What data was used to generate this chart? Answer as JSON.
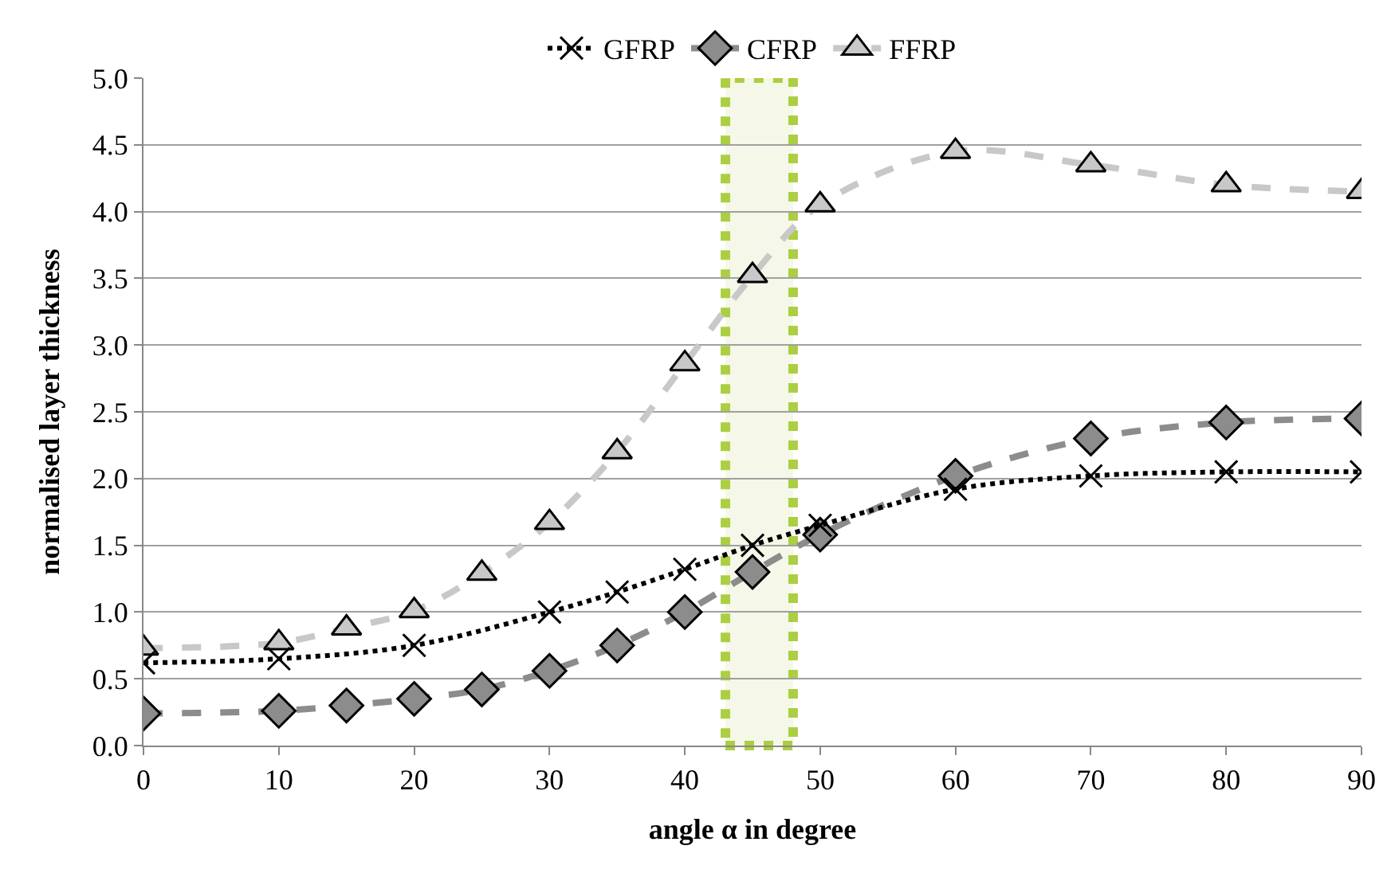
{
  "chart_data": {
    "type": "line",
    "xlabel": "angle α in degree",
    "ylabel": "normalised layer thickness",
    "xlim": [
      0,
      90
    ],
    "xticks": [
      0,
      10,
      20,
      30,
      40,
      50,
      60,
      70,
      80,
      90
    ],
    "ylim": [
      0,
      5
    ],
    "yticks": [
      {
        "value": 0,
        "label": "0.0"
      },
      {
        "value": 0.5,
        "label": "0.5"
      },
      {
        "value": 1,
        "label": "1.0"
      },
      {
        "value": 1.5,
        "label": "1.5"
      },
      {
        "value": 2,
        "label": "2.0"
      },
      {
        "value": 2.5,
        "label": "2.5"
      },
      {
        "value": 3,
        "label": "3.0"
      },
      {
        "value": 3.5,
        "label": "3.5"
      },
      {
        "value": 4,
        "label": "4.0"
      },
      {
        "value": 4.5,
        "label": "4.5"
      },
      {
        "value": 5,
        "label": "5.0"
      }
    ],
    "grid": "y",
    "legend": "top",
    "bands": [
      {
        "axis": "x",
        "from": 43,
        "to": 48,
        "color": "#a4c92f"
      }
    ],
    "series": [
      {
        "name": "GFRP",
        "color": "#000000",
        "marker": "cross",
        "line_style": "dotted",
        "x": [
          0,
          10,
          20,
          30,
          35,
          40,
          45,
          50,
          60,
          70,
          80,
          90
        ],
        "values": [
          0.62,
          0.65,
          0.75,
          1.0,
          1.15,
          1.32,
          1.5,
          1.65,
          1.92,
          2.02,
          2.05,
          2.05
        ]
      },
      {
        "name": "CFRP",
        "color": "#8c8c8c",
        "marker": "diamond",
        "line_style": "dashed",
        "x": [
          0,
          10,
          15,
          20,
          25,
          30,
          35,
          40,
          45,
          50,
          60,
          70,
          80,
          90
        ],
        "values": [
          0.24,
          0.26,
          0.3,
          0.35,
          0.42,
          0.56,
          0.75,
          1.0,
          1.3,
          1.58,
          2.02,
          2.3,
          2.42,
          2.45
        ]
      },
      {
        "name": "FFRP",
        "color": "#c8c8c8",
        "marker": "triangle",
        "line_style": "dashed",
        "x": [
          0,
          10,
          15,
          20,
          25,
          30,
          35,
          40,
          45,
          50,
          60,
          70,
          80,
          90
        ],
        "values": [
          0.73,
          0.77,
          0.88,
          1.01,
          1.29,
          1.67,
          2.2,
          2.86,
          3.52,
          4.05,
          4.45,
          4.35,
          4.2,
          4.15
        ]
      }
    ]
  }
}
